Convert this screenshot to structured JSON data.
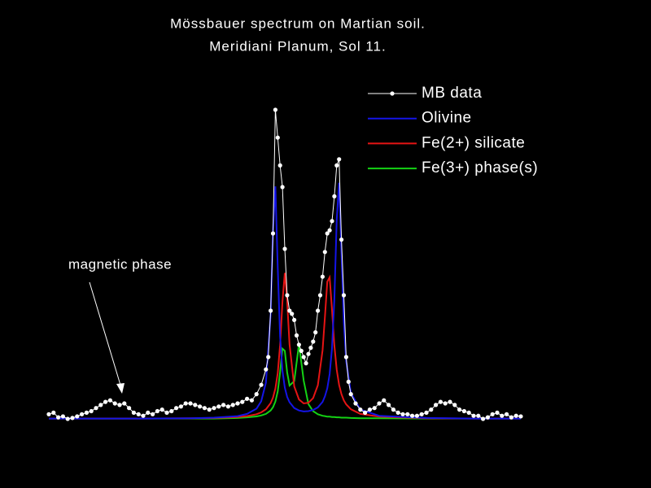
{
  "chart_data": {
    "type": "line",
    "title": "Mössbauer spectrum on Martian soil.",
    "subtitle": "Meridiani Planum, Sol 11.",
    "annotation": "magnetic phase",
    "legend": "upper right",
    "xlim": [
      0,
      100
    ],
    "ylim": [
      0,
      100
    ],
    "series": [
      {
        "name": "MB data",
        "color": "#ffffff",
        "markers": true,
        "x": [
          0,
          1,
          2,
          3,
          4,
          5,
          6,
          7,
          8,
          9,
          10,
          11,
          12,
          13,
          14,
          15,
          16,
          17,
          18,
          19,
          20,
          21,
          22,
          23,
          24,
          25,
          26,
          27,
          28,
          29,
          30,
          31,
          32,
          33,
          34,
          35,
          36,
          37,
          38,
          39,
          40,
          41,
          42,
          43,
          44,
          45,
          46,
          46.5,
          47,
          47.5,
          48,
          48.5,
          49,
          49.5,
          50,
          50.5,
          51,
          51.5,
          52,
          52.5,
          53,
          53.5,
          54,
          54.5,
          55,
          55.5,
          56,
          56.5,
          57,
          57.5,
          58,
          58.5,
          59,
          59.5,
          60,
          60.5,
          61,
          61.5,
          62,
          62.5,
          63,
          63.5,
          64,
          65,
          66,
          67,
          68,
          69,
          70,
          71,
          72,
          73,
          74,
          75,
          76,
          77,
          78,
          79,
          80,
          81,
          82,
          83,
          84,
          85,
          86,
          87,
          88,
          89,
          90,
          91,
          92,
          93,
          94,
          95,
          96,
          97,
          98,
          99,
          100
        ],
        "values": [
          1.5,
          2,
          0.5,
          0.8,
          0,
          0.3,
          0.8,
          1.5,
          2,
          2.5,
          3.5,
          4.5,
          5.5,
          6,
          5,
          4.5,
          5,
          3.5,
          2,
          1.5,
          1,
          2,
          1.5,
          2.5,
          3,
          2,
          2.5,
          3.5,
          4,
          5,
          5,
          4.5,
          4,
          3.5,
          3,
          3.5,
          4,
          4.5,
          4,
          4.5,
          5,
          5.5,
          6.5,
          6,
          8,
          11,
          16,
          20,
          35,
          60,
          100,
          91,
          82,
          75,
          55,
          40,
          35,
          34,
          32,
          27,
          24,
          22,
          20,
          18,
          21,
          23,
          25,
          28,
          35,
          40,
          46,
          54,
          60,
          61,
          64,
          72,
          82,
          84,
          58,
          40,
          20,
          12,
          8,
          5,
          3,
          2,
          3,
          3.5,
          5,
          6,
          4.5,
          3,
          2,
          1.5,
          1.5,
          1,
          1,
          1.5,
          2,
          3,
          4.5,
          5.5,
          5,
          5.5,
          4.5,
          3,
          2.5,
          2,
          1,
          1,
          0,
          0.5,
          1.5,
          2,
          1,
          1.5,
          0.5,
          1,
          0.8
        ]
      },
      {
        "name": "Olivine",
        "color": "#1414e6",
        "markers": false,
        "x": [
          0,
          10,
          20,
          30,
          35,
          40,
          42,
          44,
          45,
          46,
          47,
          47.5,
          48,
          48.5,
          49,
          49.5,
          50,
          50.5,
          51,
          52,
          53,
          54,
          55,
          56,
          57,
          58,
          58.5,
          59,
          59.5,
          60,
          60.5,
          61,
          61.5,
          62,
          62.5,
          63,
          64,
          66,
          70,
          80,
          90,
          100
        ],
        "values": [
          0.1,
          0.1,
          0.1,
          0.2,
          0.4,
          0.9,
          1.6,
          3.3,
          5.7,
          11.7,
          33.8,
          61.2,
          75.2,
          49,
          26.7,
          15.6,
          10.1,
          7.1,
          5.4,
          3.5,
          2.7,
          2.4,
          2.5,
          2.9,
          3.7,
          5.5,
          7.3,
          9.9,
          14.5,
          22.9,
          38.8,
          64.5,
          76.4,
          53.6,
          31.2,
          18.7,
          8.4,
          3.0,
          1.0,
          0.3,
          0.1,
          0.1
        ]
      },
      {
        "name": "Fe(2+) silicate",
        "color": "#e61414",
        "markers": false,
        "x": [
          0,
          10,
          20,
          30,
          35,
          40,
          42,
          44,
          45,
          46,
          47,
          47.5,
          48,
          48.5,
          49,
          49.5,
          50,
          50.5,
          51,
          52,
          53,
          54,
          55,
          56,
          57,
          58,
          58.5,
          59,
          59.5,
          60,
          60.5,
          61,
          61.5,
          62,
          62.5,
          63,
          64,
          66,
          70,
          80,
          90,
          100
        ],
        "values": [
          0.1,
          0.1,
          0.1,
          0.2,
          0.3,
          0.6,
          0.9,
          1.5,
          2.1,
          3.1,
          5.1,
          6.9,
          9.8,
          14.8,
          23.9,
          37.9,
          47.2,
          38.0,
          24.1,
          10.5,
          6.3,
          5.0,
          5.2,
          6.7,
          10.9,
          22.2,
          33.0,
          44.4,
          45.8,
          35.3,
          23.7,
          15.9,
          11.0,
          8.0,
          6.0,
          4.7,
          3.1,
          1.6,
          0.7,
          0.2,
          0.1,
          0.1
        ]
      },
      {
        "name": "Fe(3+) phase(s)",
        "color": "#14d214",
        "markers": false,
        "x": [
          0,
          10,
          20,
          30,
          35,
          40,
          42,
          44,
          45,
          46,
          47,
          47.5,
          48,
          48.5,
          49,
          49.5,
          50,
          50.5,
          51,
          52,
          53,
          54,
          55,
          56,
          57,
          58,
          58.5,
          59,
          59.5,
          60,
          60.5,
          61,
          61.5,
          62,
          62.5,
          63,
          64,
          66,
          70,
          80,
          90,
          100
        ],
        "values": [
          0.1,
          0.1,
          0.1,
          0.1,
          0.1,
          0.3,
          0.5,
          0.8,
          1.1,
          1.6,
          2.7,
          3.8,
          5.6,
          8.9,
          15.1,
          22.7,
          22.0,
          15.0,
          10.8,
          12.2,
          24.2,
          12.4,
          4.8,
          2.5,
          1.5,
          1.0,
          0.9,
          0.7,
          0.7,
          0.6,
          0.6,
          0.5,
          0.5,
          0.4,
          0.4,
          0.4,
          0.3,
          0.2,
          0.2,
          0.1,
          0.1,
          0.1
        ]
      }
    ]
  }
}
